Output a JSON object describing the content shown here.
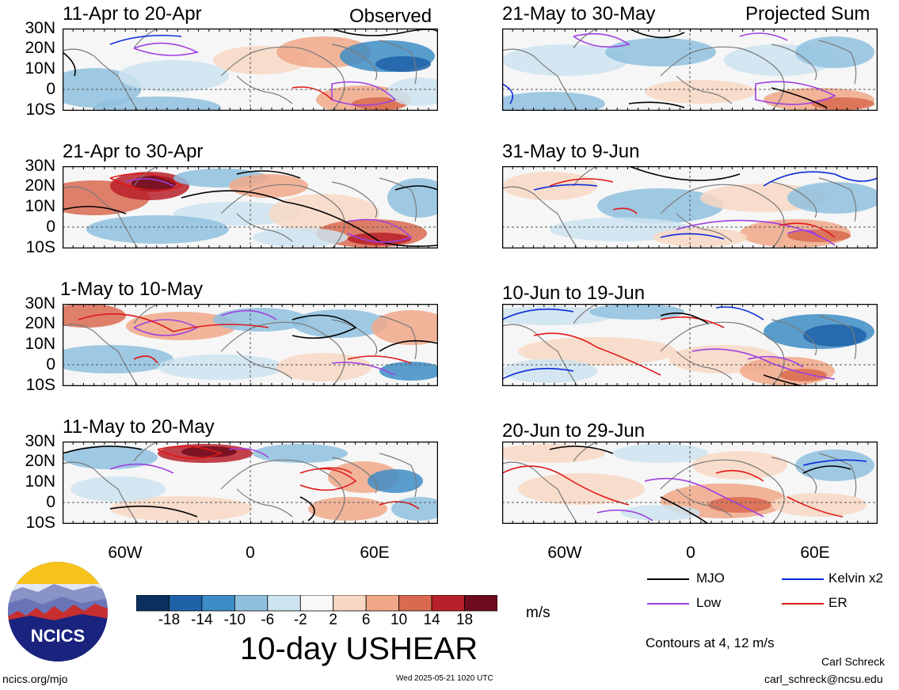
{
  "colors": {
    "mjo": "#000000",
    "low": "#a040e0",
    "kelvin": "#0a2ad8",
    "er": "#e01818",
    "scale": [
      "#0b2f5e",
      "#1f62a8",
      "#3d8dc6",
      "#8fc1df",
      "#cde3f0",
      "#f8f8f8",
      "#f8d8c4",
      "#f0a888",
      "#d96a50",
      "#b8202a",
      "#6e0c1e"
    ]
  },
  "left_header": "Observed",
  "right_header": "Projected Sum",
  "panels_left": [
    {
      "title": "11-Apr to 20-Apr"
    },
    {
      "title": "21-Apr to 30-Apr"
    },
    {
      "title": "1-May to 10-May"
    },
    {
      "title": "11-May to 20-May"
    }
  ],
  "panels_right": [
    {
      "title": "21-May to 30-May"
    },
    {
      "title": "31-May to 9-Jun"
    },
    {
      "title": "10-Jun to 19-Jun"
    },
    {
      "title": "20-Jun to 29-Jun"
    }
  ],
  "lat_labels": [
    "30N",
    "20N",
    "10N",
    "0",
    "10S"
  ],
  "lon_labels": [
    "60W",
    "0",
    "60E"
  ],
  "colorbar": {
    "ticks": [
      "-18",
      "-14",
      "-10",
      "-6",
      "-2",
      "2",
      "6",
      "10",
      "14",
      "18"
    ],
    "units": "m/s",
    "title": "10-day USHEAR"
  },
  "legend": {
    "mjo": "MJO",
    "kelvin": "Kelvin x2",
    "low": "Low",
    "er": "ER",
    "contours_note": "Contours at 4, 12 m/s"
  },
  "logo_text": "NCICS",
  "footer": {
    "url": "ncics.org/mjo",
    "timestamp": "Wed 2025-05-21 1020 UTC",
    "author": "Carl Schreck",
    "email": "carl_schreck@ncsu.edu"
  }
}
